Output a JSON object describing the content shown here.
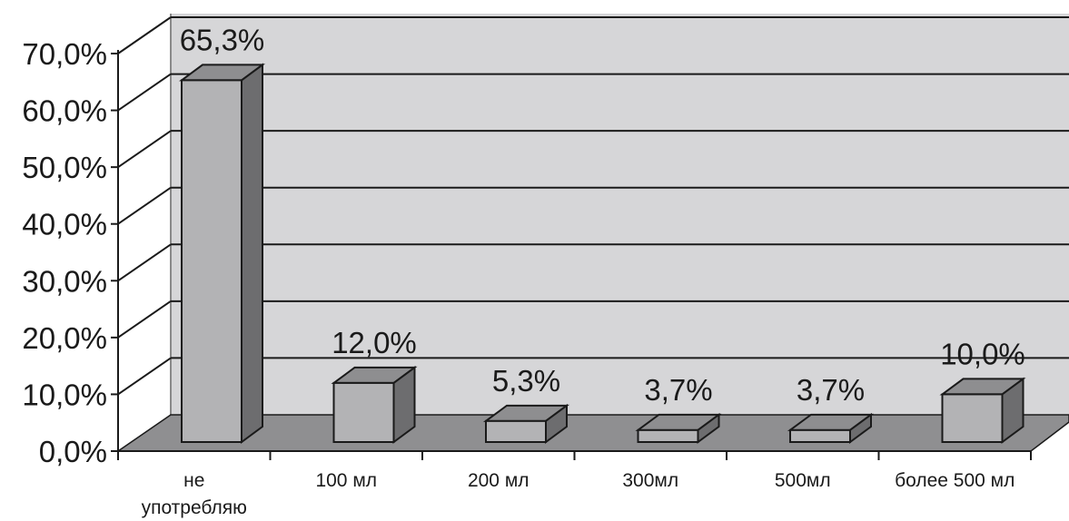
{
  "chart_data": {
    "type": "bar",
    "categories": [
      "не употребляю",
      "100 мл",
      "200 мл",
      "300мл",
      "500мл",
      "более 500 мл"
    ],
    "category_lines": [
      [
        "не",
        "употребляю"
      ],
      [
        "100 мл"
      ],
      [
        "200 мл"
      ],
      [
        "300мл"
      ],
      [
        "500мл"
      ],
      [
        "более 500 мл"
      ]
    ],
    "values": [
      65.3,
      12.0,
      5.3,
      3.7,
      3.7,
      10.0
    ],
    "data_labels": [
      "65,3%",
      "12,0%",
      "5,3%",
      "3,7%",
      "3,7%",
      "10,0%"
    ],
    "y_tick_labels": [
      "0,0%",
      "10,0%",
      "20,0%",
      "30,0%",
      "40,0%",
      "50,0%",
      "60,0%",
      "70,0%"
    ],
    "y_ticks": [
      0,
      10,
      20,
      30,
      40,
      50,
      60,
      70
    ],
    "ylim": [
      0,
      70
    ],
    "title": "",
    "xlabel": "",
    "ylabel": "",
    "grid": true,
    "three_d": true,
    "colors": {
      "bar_front": "#b3b3b5",
      "bar_side": "#6d6d6f",
      "bar_top": "#8e8e90",
      "wall": "#d6d6d8",
      "floor": "#8f8f91",
      "grid": "#1a1a1a",
      "axis": "#1a1a1a"
    }
  }
}
